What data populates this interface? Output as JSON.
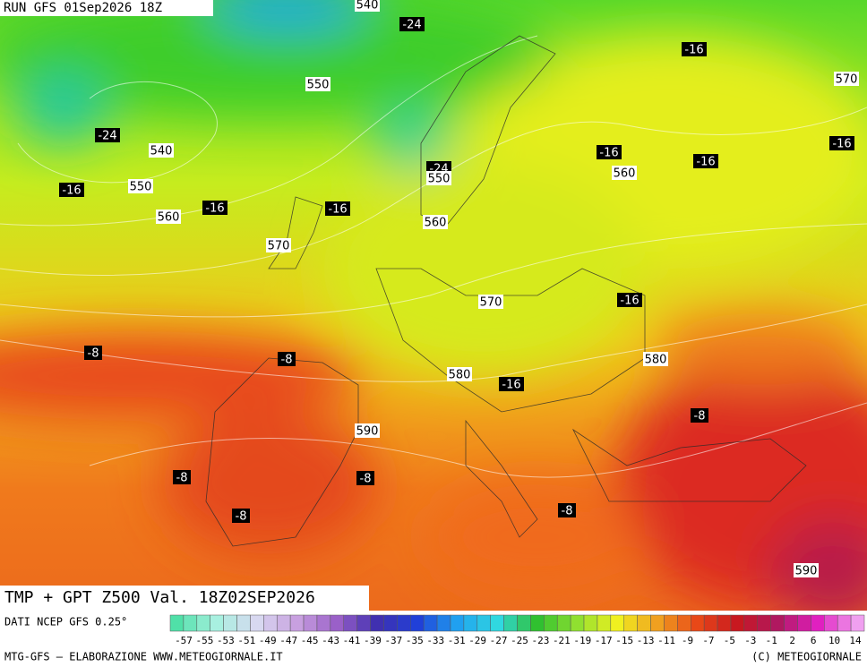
{
  "header": {
    "run": "RUN GFS 01Sep2026 18Z"
  },
  "map": {
    "title": "TMP + GPT Z500 Val. 18Z02SEP2026",
    "contour_labels": [
      540,
      -24,
      -16,
      570,
      550,
      -24,
      540,
      -16,
      -16,
      -16,
      -24,
      550,
      560,
      -16,
      550,
      -16,
      -16,
      560,
      560,
      570,
      -16,
      570,
      -8,
      -8,
      580,
      580,
      -16,
      -8,
      590,
      -8,
      -8,
      -8,
      -8,
      590
    ]
  },
  "legend": {
    "source": "DATI NCEP GFS 0.25°",
    "ticks": [
      -57,
      -55,
      -53,
      -51,
      -49,
      -47,
      -45,
      -43,
      -41,
      -39,
      -37,
      -35,
      -33,
      -31,
      -29,
      -27,
      -25,
      -23,
      -21,
      -19,
      -17,
      -15,
      -13,
      -11,
      -9,
      -7,
      -5,
      -3,
      -1,
      2,
      6,
      10,
      14
    ]
  },
  "footer": {
    "credit": "MTG-GFS — ELABORAZIONE WWW.METEOGIORNALE.IT",
    "copyright": "(C) METEOGIORNALE"
  }
}
